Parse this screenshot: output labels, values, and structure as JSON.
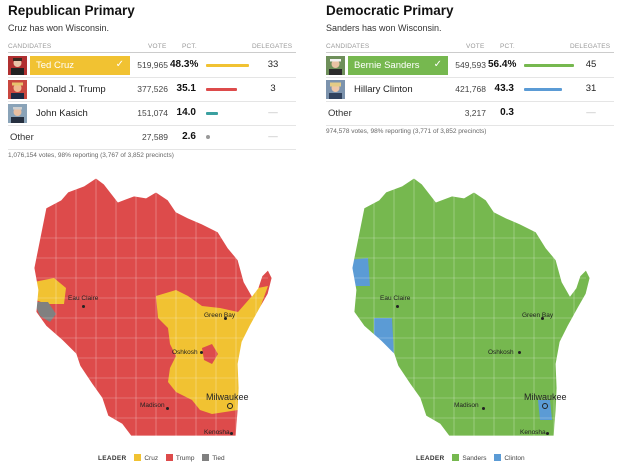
{
  "colors": {
    "cruz": "#f1c232",
    "trump": "#dd4b4b",
    "kasich": "#3aa0a0",
    "tied": "#808080",
    "sanders": "#76b84f",
    "clinton": "#5b9bd5"
  },
  "republican": {
    "title": "Republican Primary",
    "subtitle": "Cruz has won Wisconsin.",
    "headers": {
      "candidates": "CANDIDATES",
      "vote": "VOTE",
      "pct": "PCT.",
      "delegates": "DELEGATES"
    },
    "rows": [
      {
        "name": "Ted Cruz",
        "vote": "519,965",
        "pct": "48.3%",
        "pct_value": 48.3,
        "delegates": "33",
        "winner": true,
        "color": "#f1c232",
        "photo": "ted-cruz-photo"
      },
      {
        "name": "Donald J. Trump",
        "vote": "377,526",
        "pct": "35.1",
        "pct_value": 35.1,
        "delegates": "3",
        "winner": false,
        "color": "#dd4b4b",
        "photo": "donald-trump-photo"
      },
      {
        "name": "John Kasich",
        "vote": "151,074",
        "pct": "14.0",
        "pct_value": 14.0,
        "delegates": "—",
        "winner": false,
        "color": "#3aa0a0",
        "photo": "john-kasich-photo"
      }
    ],
    "other": {
      "name": "Other",
      "vote": "27,589",
      "pct": "2.6",
      "pct_value": 2.6,
      "delegates": "—"
    },
    "footer": "1,076,154 votes, 98% reporting (3,767 of 3,852 precincts)",
    "cities": {
      "eau_claire": "Eau Claire",
      "green_bay": "Green Bay",
      "oshkosh": "Oshkosh",
      "milwaukee": "Milwaukee",
      "madison": "Madison",
      "kenosha": "Kenosha"
    },
    "legend": {
      "label": "LEADER",
      "items": [
        "Cruz",
        "Trump",
        "Tied"
      ]
    }
  },
  "democratic": {
    "title": "Democratic Primary",
    "subtitle": "Sanders has won Wisconsin.",
    "headers": {
      "candidates": "CANDIDATES",
      "vote": "VOTE",
      "pct": "PCT.",
      "delegates": "DELEGATES"
    },
    "rows": [
      {
        "name": "Bernie Sanders",
        "vote": "549,593",
        "pct": "56.4%",
        "pct_value": 56.4,
        "delegates": "45",
        "winner": true,
        "color": "#76b84f",
        "photo": "bernie-sanders-photo"
      },
      {
        "name": "Hillary Clinton",
        "vote": "421,768",
        "pct": "43.3",
        "pct_value": 43.3,
        "delegates": "31",
        "winner": false,
        "color": "#5b9bd5",
        "photo": "hillary-clinton-photo"
      }
    ],
    "other": {
      "name": "Other",
      "vote": "3,217",
      "pct": "0.3",
      "pct_value": 0.3,
      "delegates": "—"
    },
    "footer": "974,578 votes, 98% reporting (3,771 of 3,852 precincts)",
    "cities": {
      "eau_claire": "Eau Claire",
      "green_bay": "Green Bay",
      "oshkosh": "Oshkosh",
      "milwaukee": "Milwaukee",
      "madison": "Madison",
      "kenosha": "Kenosha"
    },
    "legend": {
      "label": "LEADER",
      "items": [
        "Sanders",
        "Clinton"
      ]
    }
  }
}
